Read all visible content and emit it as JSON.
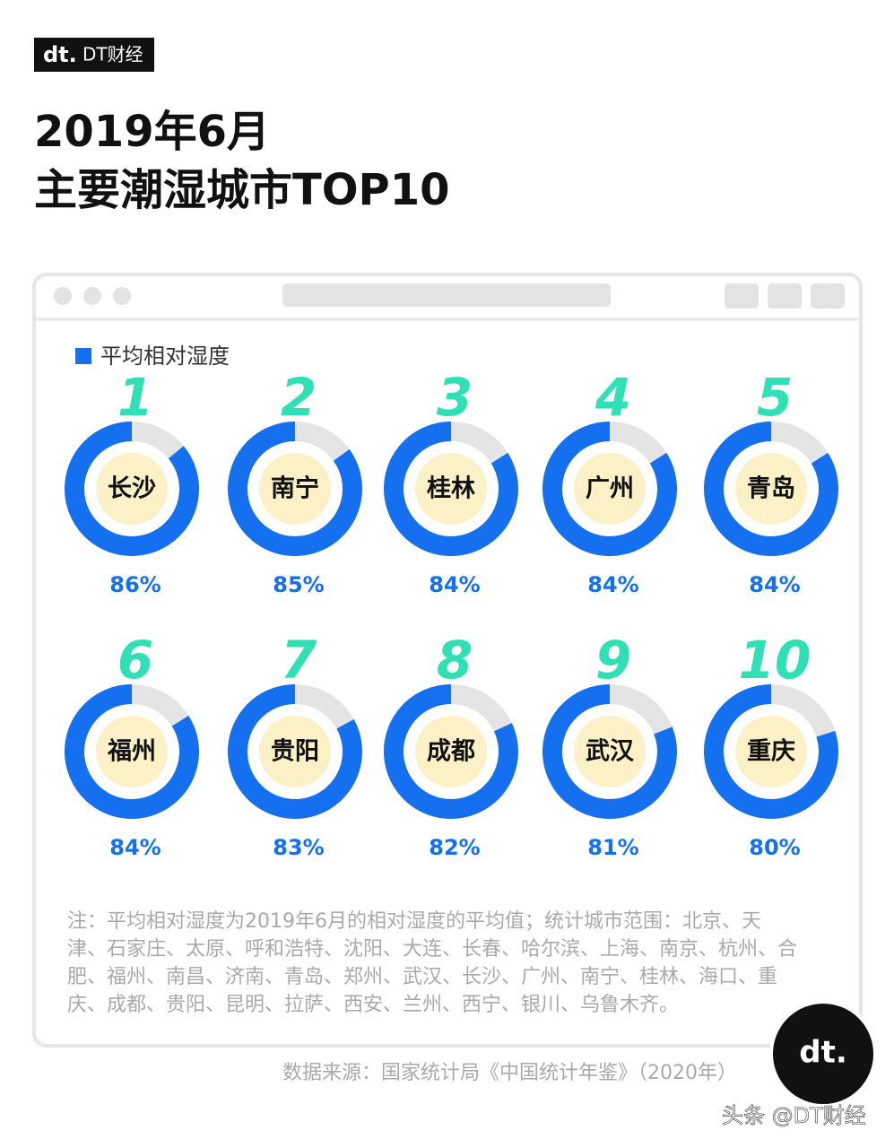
{
  "brand": "DT财经",
  "title": [
    "2019年6月",
    "主要潮湿城市TOP10"
  ],
  "chart_data": {
    "type": "donut",
    "categories": [
      "长沙",
      "南宁",
      "桂林",
      "广州",
      "青岛",
      "福州",
      "贵阳",
      "成都",
      "武汉",
      "重庆"
    ],
    "ranks": [
      1,
      2,
      3,
      4,
      5,
      6,
      7,
      8,
      9,
      10
    ],
    "ylim": [
      0,
      100
    ],
    "series": [
      {
        "name": "平均相对湿度",
        "color": "#1570ef",
        "values": [
          86,
          85,
          84,
          84,
          84,
          84,
          83,
          82,
          81,
          80
        ],
        "value_labels": [
          "86%",
          "85%",
          "84%",
          "84%",
          "84%",
          "84%",
          "83%",
          "82%",
          "81%",
          "80%"
        ]
      }
    ]
  },
  "note": "注：平均相对湿度为2019年6月的相对湿度的平均值；统计城市范围：北京、天津、石家庄、太原、呼和浩特、沈阳、大连、长春、哈尔滨、上海、南京、杭州、合肥、福州、南昌、济南、青岛、郑州、武汉、长沙、广州、南宁、桂林、海口、重庆、成都、贵阳、昆明、拉萨、西安、兰州、西宁、银川、乌鲁木齐。",
  "source": "数据来源：国家统计局《中国统计年鉴》（2020年）",
  "footer": "头条 @DT财经"
}
